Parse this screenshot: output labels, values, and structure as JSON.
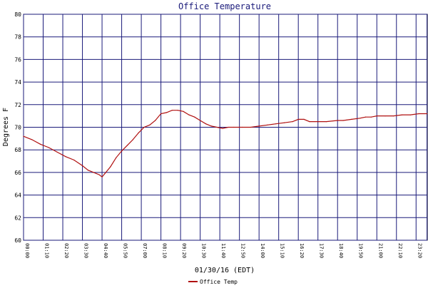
{
  "chart_data": {
    "type": "line",
    "title": "Office Temperature",
    "xlabel": "01/30/16 (EDT)",
    "ylabel": "Degrees F",
    "ylim": [
      60,
      80
    ],
    "yticks": [
      "60",
      "62",
      "64",
      "66",
      "68",
      "70",
      "72",
      "74",
      "76",
      "78",
      "80"
    ],
    "xlim_minutes": [
      0,
      1440
    ],
    "xticks": [
      "00:00",
      "01:10",
      "02:20",
      "03:30",
      "04:40",
      "05:50",
      "07:00",
      "08:10",
      "09:20",
      "10:30",
      "11:40",
      "12:50",
      "14:00",
      "15:10",
      "16:20",
      "17:30",
      "18:40",
      "19:50",
      "21:00",
      "22:10",
      "23:20",
      "23:59"
    ],
    "grid": true,
    "legend_position": "bottom-left",
    "colors": {
      "line": "#b01010",
      "grid": "#1a1a7a",
      "axis": "#000000",
      "background": "#ffffff"
    },
    "series": [
      {
        "name": "Office Temp",
        "x": [
          "00:00",
          "00:30",
          "01:00",
          "01:30",
          "02:00",
          "02:30",
          "03:00",
          "03:30",
          "03:50",
          "04:10",
          "04:30",
          "04:40",
          "04:50",
          "05:10",
          "05:30",
          "05:50",
          "06:10",
          "06:30",
          "06:50",
          "07:10",
          "07:30",
          "07:50",
          "08:10",
          "08:30",
          "08:50",
          "09:10",
          "09:30",
          "09:50",
          "10:10",
          "10:30",
          "10:50",
          "11:10",
          "11:30",
          "11:50",
          "12:10",
          "12:30",
          "13:00",
          "13:30",
          "14:00",
          "14:30",
          "15:00",
          "15:30",
          "16:00",
          "16:20",
          "16:40",
          "17:00",
          "17:30",
          "18:00",
          "18:40",
          "19:00",
          "19:30",
          "20:00",
          "20:20",
          "20:40",
          "21:00",
          "21:30",
          "22:00",
          "22:30",
          "23:00",
          "23:30",
          "23:59"
        ],
        "values": [
          69.2,
          68.9,
          68.5,
          68.2,
          67.8,
          67.4,
          67.1,
          66.6,
          66.2,
          66.0,
          65.8,
          65.6,
          65.9,
          66.5,
          67.3,
          67.9,
          68.4,
          68.9,
          69.5,
          70.0,
          70.2,
          70.6,
          71.2,
          71.3,
          71.5,
          71.5,
          71.4,
          71.1,
          70.9,
          70.6,
          70.3,
          70.1,
          70.0,
          69.9,
          70.0,
          70.0,
          70.0,
          70.0,
          70.1,
          70.2,
          70.3,
          70.4,
          70.5,
          70.7,
          70.7,
          70.5,
          70.5,
          70.5,
          70.6,
          70.6,
          70.7,
          70.8,
          70.9,
          70.9,
          71.0,
          71.0,
          71.0,
          71.1,
          71.1,
          71.2,
          71.2
        ]
      }
    ]
  }
}
